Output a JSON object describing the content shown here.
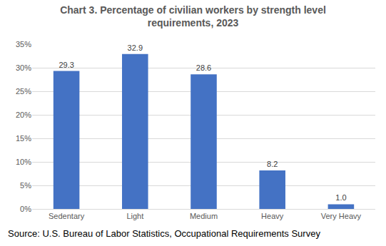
{
  "chart_data": {
    "type": "bar",
    "title": "Chart 3. Percentage of civilian workers by strength level requirements, 2023",
    "source": "Source: U.S. Bureau of Labor Statistics, Occupational Requirements Survey",
    "categories": [
      "Sedentary",
      "Light",
      "Medium",
      "Heavy",
      "Very Heavy"
    ],
    "values": [
      29.3,
      32.9,
      28.6,
      8.2,
      1.0
    ],
    "value_labels": [
      "29.3",
      "32.9",
      "28.6",
      "8.2",
      "1.0"
    ],
    "color": "#4472c4",
    "ylim": [
      0,
      35
    ],
    "yticks": [
      {
        "value": 0,
        "label": "0%"
      },
      {
        "value": 5,
        "label": "5%"
      },
      {
        "value": 10,
        "label": "10%"
      },
      {
        "value": 15,
        "label": "15%"
      },
      {
        "value": 20,
        "label": "20%"
      },
      {
        "value": 25,
        "label": "25%"
      },
      {
        "value": 30,
        "label": "30%"
      },
      {
        "value": 35,
        "label": "35%"
      }
    ],
    "grid": true,
    "data_labels": true
  }
}
